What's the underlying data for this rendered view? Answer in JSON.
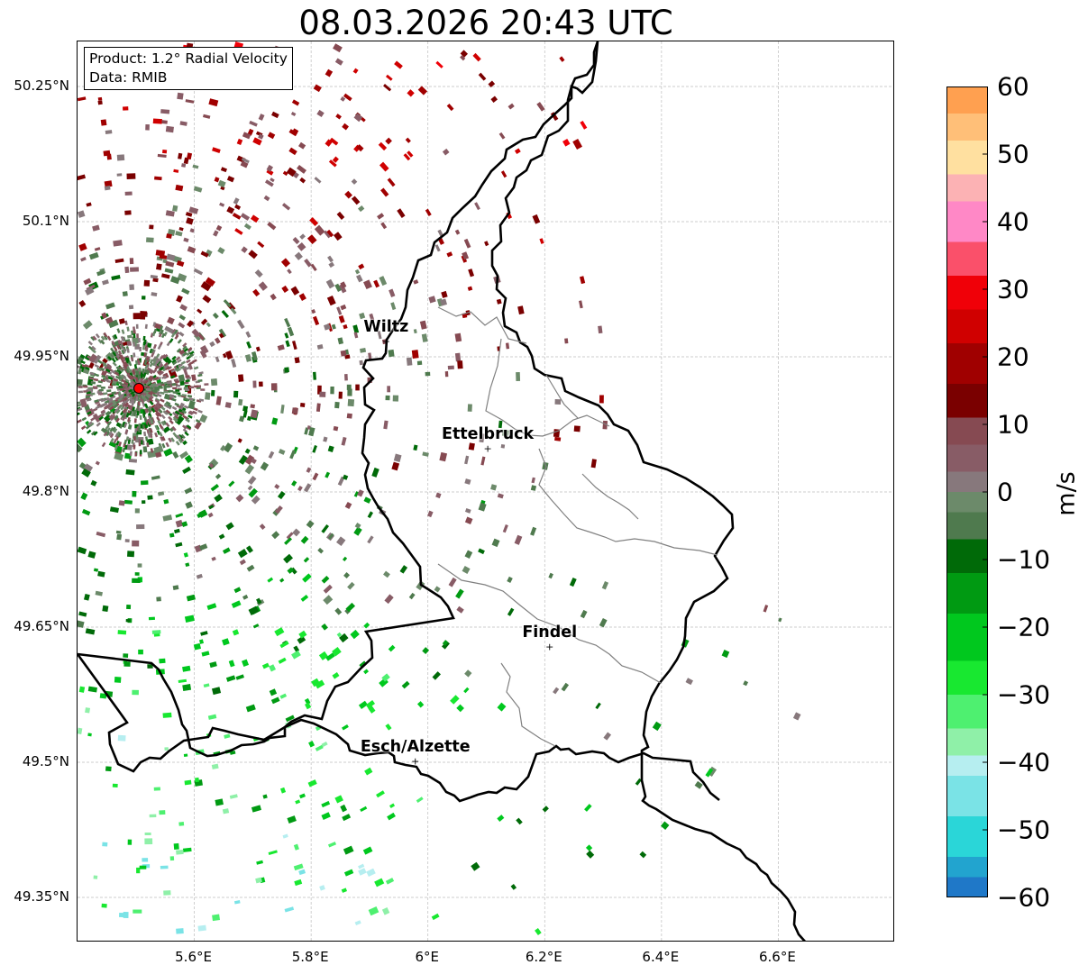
{
  "title": "08.03.2026 20:43 UTC",
  "info": {
    "product": "Product: 1.2° Radial Velocity",
    "data_source": "Data: RMIB"
  },
  "lat_labels": [
    {
      "value": 50.25,
      "text": "50.25°N"
    },
    {
      "value": 50.1,
      "text": "50.1°N"
    },
    {
      "value": 49.95,
      "text": "49.95°N"
    },
    {
      "value": 49.8,
      "text": "49.8°N"
    },
    {
      "value": 49.65,
      "text": "49.65°N"
    },
    {
      "value": 49.5,
      "text": "49.5°N"
    },
    {
      "value": 49.35,
      "text": "49.35°N"
    }
  ],
  "lon_labels": [
    {
      "value": 5.6,
      "text": "5.6°E"
    },
    {
      "value": 5.8,
      "text": "5.8°E"
    },
    {
      "value": 6.0,
      "text": "6°E"
    },
    {
      "value": 6.2,
      "text": "6.2°E"
    },
    {
      "value": 6.4,
      "text": "6.4°E"
    },
    {
      "value": 6.6,
      "text": "6.6°E"
    }
  ],
  "extent": {
    "lon_min": 5.4,
    "lon_max": 6.8,
    "lat_min": 49.3,
    "lat_max": 50.3
  },
  "radar_site": {
    "lon": 5.505,
    "lat": 49.915
  },
  "cities": [
    {
      "name": "Wiltz",
      "lon": 5.93,
      "lat": 49.966
    },
    {
      "name": "Ettelbruck",
      "lon": 6.104,
      "lat": 49.847
    },
    {
      "name": "Findel",
      "lon": 6.21,
      "lat": 49.627
    },
    {
      "name": "Esch/Alzette",
      "lon": 5.98,
      "lat": 49.5
    }
  ],
  "colorbar": {
    "label": "m/s",
    "min": -60,
    "max": 60,
    "ticks": [
      {
        "value": 60,
        "text": "60"
      },
      {
        "value": 50,
        "text": "50"
      },
      {
        "value": 40,
        "text": "40"
      },
      {
        "value": 30,
        "text": "30"
      },
      {
        "value": 20,
        "text": "20"
      },
      {
        "value": 10,
        "text": "10"
      },
      {
        "value": 0,
        "text": "0"
      },
      {
        "value": -10,
        "text": "−10"
      },
      {
        "value": -20,
        "text": "−20"
      },
      {
        "value": -30,
        "text": "−30"
      },
      {
        "value": -40,
        "text": "−40"
      },
      {
        "value": -50,
        "text": "−50"
      },
      {
        "value": -60,
        "text": "−60"
      }
    ],
    "stops": [
      {
        "from": -60,
        "to": -57,
        "color": "#1f78c8"
      },
      {
        "from": -57,
        "to": -54,
        "color": "#22a4cf"
      },
      {
        "from": -54,
        "to": -48,
        "color": "#2ad6d8"
      },
      {
        "from": -48,
        "to": -42,
        "color": "#7ae3e6"
      },
      {
        "from": -42,
        "to": -39,
        "color": "#b6eef0"
      },
      {
        "from": -39,
        "to": -35,
        "color": "#8ff0a8"
      },
      {
        "from": -35,
        "to": -30,
        "color": "#4ef070"
      },
      {
        "from": -30,
        "to": -25,
        "color": "#18e830"
      },
      {
        "from": -25,
        "to": -18,
        "color": "#00c81e"
      },
      {
        "from": -18,
        "to": -12,
        "color": "#009a12"
      },
      {
        "from": -12,
        "to": -7,
        "color": "#006a08"
      },
      {
        "from": -7,
        "to": -3,
        "color": "#4f7a4e"
      },
      {
        "from": -3,
        "to": 0,
        "color": "#6c8a6a"
      },
      {
        "from": 0,
        "to": 3,
        "color": "#87787c"
      },
      {
        "from": 3,
        "to": 7,
        "color": "#885c66"
      },
      {
        "from": 7,
        "to": 11,
        "color": "#864a52"
      },
      {
        "from": 11,
        "to": 16,
        "color": "#7a0000"
      },
      {
        "from": 16,
        "to": 22,
        "color": "#a00000"
      },
      {
        "from": 22,
        "to": 27,
        "color": "#d00000"
      },
      {
        "from": 27,
        "to": 32,
        "color": "#f00008"
      },
      {
        "from": 32,
        "to": 37,
        "color": "#fa506a"
      },
      {
        "from": 37,
        "to": 43,
        "color": "#ff88c6"
      },
      {
        "from": 43,
        "to": 47,
        "color": "#fcb2b4"
      },
      {
        "from": 47,
        "to": 52,
        "color": "#ffe0a0"
      },
      {
        "from": 52,
        "to": 56,
        "color": "#ffbf78"
      },
      {
        "from": 56,
        "to": 60,
        "color": "#ffa050"
      }
    ]
  },
  "colors": {
    "border_international": "#000000",
    "border_cantonal": "#808080",
    "radar_marker": "#ff0000",
    "grid": "#bdbdbd"
  }
}
